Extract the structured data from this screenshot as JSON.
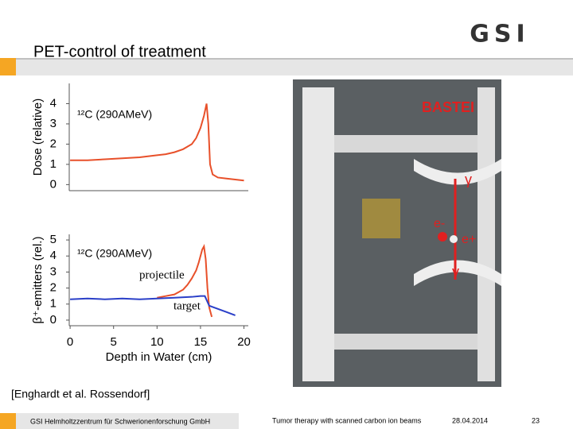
{
  "header": {
    "title": "PET-control of treatment",
    "logo": "GSI"
  },
  "chart_data": [
    {
      "type": "line",
      "y_label": "Dose (relative)",
      "annotation": "¹²C (290AMeV)",
      "xlim": [
        -0.1,
        20.5
      ],
      "ylim": [
        -0.3,
        5
      ],
      "yticks": [
        0,
        1,
        2,
        3,
        4
      ],
      "color": "#e8502a",
      "x": [
        0,
        2,
        4,
        6,
        8,
        10,
        11,
        12,
        13,
        14,
        14.5,
        15,
        15.4,
        15.7,
        15.9,
        16.1,
        16.4,
        17,
        18,
        19,
        20
      ],
      "values": [
        1.2,
        1.2,
        1.25,
        1.3,
        1.35,
        1.45,
        1.5,
        1.6,
        1.75,
        2.0,
        2.3,
        2.8,
        3.4,
        4.0,
        3.0,
        1.0,
        0.5,
        0.35,
        0.3,
        0.25,
        0.2
      ]
    },
    {
      "type": "line",
      "y_label": "β⁺-emitters (rel.)",
      "x_label": "Depth in Water (cm)",
      "annotation": "¹²C (290AMeV)",
      "xlim": [
        -0.1,
        20.5
      ],
      "ylim": [
        -0.35,
        5.35
      ],
      "xticks": [
        0,
        5,
        10,
        15,
        20
      ],
      "yticks": [
        0,
        1,
        2,
        3,
        4,
        5
      ],
      "series": [
        {
          "name": "projectile",
          "color": "#e8502a",
          "x": [
            10,
            11,
            12,
            13,
            13.5,
            14,
            14.5,
            14.8,
            15,
            15.2,
            15.4,
            15.6,
            15.8,
            16,
            16.3
          ],
          "values": [
            1.4,
            1.5,
            1.6,
            1.9,
            2.2,
            2.6,
            3.1,
            3.6,
            4.0,
            4.4,
            4.6,
            3.8,
            2.0,
            0.8,
            0.2
          ]
        },
        {
          "name": "target",
          "color": "#2a3fc8",
          "x": [
            0,
            2,
            4,
            6,
            8,
            10,
            12,
            14,
            15,
            15.5,
            16,
            16.5,
            17,
            18,
            19
          ],
          "values": [
            1.3,
            1.35,
            1.3,
            1.35,
            1.3,
            1.35,
            1.4,
            1.45,
            1.5,
            1.5,
            0.9,
            0.8,
            0.7,
            0.5,
            0.3
          ]
        }
      ]
    }
  ],
  "photo": {
    "label": "BASTEI",
    "gamma_top": "γ",
    "electron": "e-",
    "positron": "e+",
    "gamma_bottom": "γ"
  },
  "citation": "[Enghardt et al. Rossendorf]",
  "footer": {
    "institute": "GSI Helmholtzzentrum für Schwerionenforschung GmbH",
    "topic": "Tumor therapy with scanned carbon ion beams",
    "date": "28.04.2014",
    "page": "23"
  }
}
